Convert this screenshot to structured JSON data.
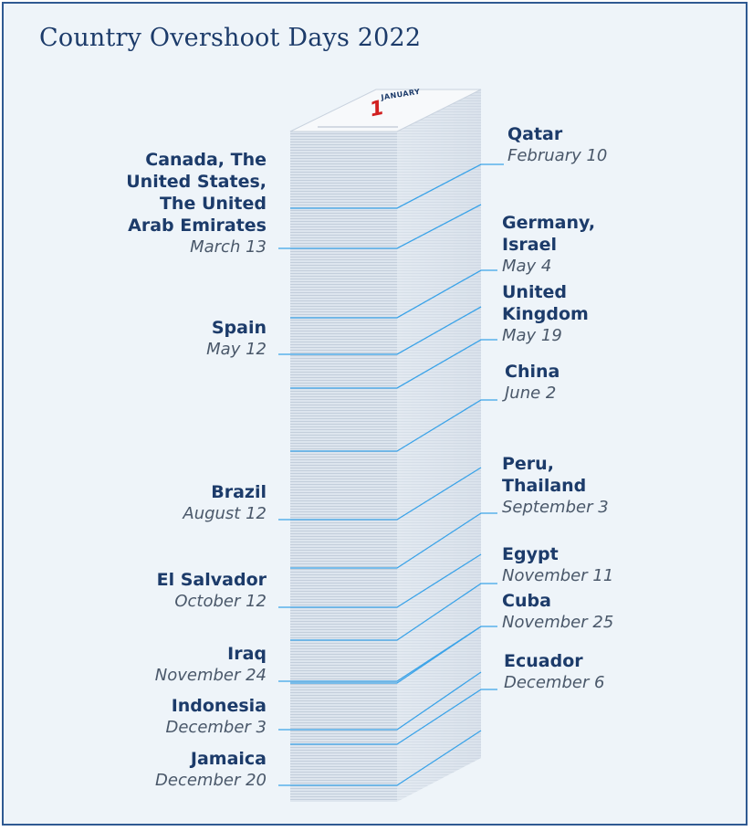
{
  "title": "Country Overshoot Days 2022",
  "calendar": {
    "month": "JANUARY",
    "day": "1"
  },
  "colors": {
    "title": "#1c3b6a",
    "leader": "#3ba3e8",
    "calendar_day": "#d12020",
    "date": "#4a586a"
  },
  "left_entries": [
    {
      "name": "Canada, The\nUnited States,\nThe United\nArab Emirates",
      "date": "March 13"
    },
    {
      "name": "Spain",
      "date": "May 12"
    },
    {
      "name": "Brazil",
      "date": "August 12"
    },
    {
      "name": "El Salvador",
      "date": "October 12"
    },
    {
      "name": "Iraq",
      "date": "November 24"
    },
    {
      "name": "Indonesia",
      "date": "December 3"
    },
    {
      "name": "Jamaica",
      "date": "December 20"
    }
  ],
  "right_entries": [
    {
      "name": "Qatar",
      "date": "February 10"
    },
    {
      "name": "Germany,\nIsrael",
      "date": "May 4"
    },
    {
      "name": "United\nKingdom",
      "date": "May 19"
    },
    {
      "name": "China",
      "date": "June 2"
    },
    {
      "name": "Peru,\nThailand",
      "date": "September 3"
    },
    {
      "name": "Egypt",
      "date": "November 11"
    },
    {
      "name": "Cuba",
      "date": "November 25"
    },
    {
      "name": "Ecuador",
      "date": "December 6"
    }
  ]
}
